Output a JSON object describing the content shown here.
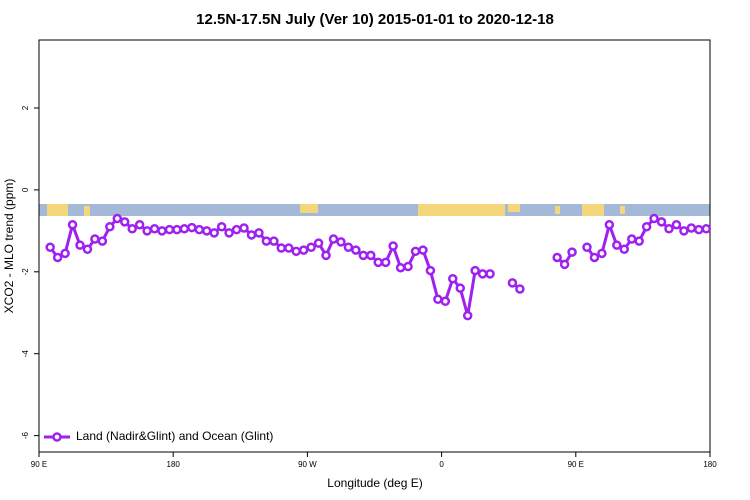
{
  "chart_data": {
    "type": "line",
    "title": "12.5N-17.5N July (Ver 10)   2015-01-01 to 2020-12-18",
    "x_label": "Longitude (deg E)",
    "y_label": "XCO2 - MLO trend (ppm)",
    "x": [
      97.5,
      102.5,
      107.5,
      112.5,
      117.5,
      122.5,
      127.5,
      132.5,
      137.5,
      142.5,
      147.5,
      152.5,
      157.5,
      162.5,
      167.5,
      172.5,
      177.5,
      182.5,
      187.5,
      192.5,
      197.5,
      202.5,
      207.5,
      212.5,
      217.5,
      222.5,
      227.5,
      232.5,
      237.5,
      242.5,
      247.5,
      252.5,
      257.5,
      262.5,
      267.5,
      272.5,
      277.5,
      282.5,
      287.5,
      292.5,
      297.5,
      302.5,
      307.5,
      312.5,
      317.5,
      322.5,
      327.5,
      332.5,
      337.5,
      342.5,
      347.5,
      352.5,
      357.5,
      362.5,
      367.5,
      372.5,
      377.5,
      382.5,
      387.5,
      392.5,
      397.5,
      402.5,
      407.5,
      412.5,
      417.5,
      422.5,
      427.5,
      432.5,
      437.5,
      442.5,
      447.5,
      452.5,
      457.5,
      462.5,
      467.5,
      472.5,
      477.5,
      482.5,
      487.5,
      492.5,
      497.5,
      502.5,
      507.5,
      512.5,
      517.5,
      522.5,
      527.5,
      532.5,
      537.5
    ],
    "series": [
      {
        "name": "Land (Nadir&Glint) and Ocean (Glint)",
        "color": "#a020f0",
        "values": [
          -1.4,
          -1.65,
          -1.55,
          -0.85,
          -1.35,
          -1.45,
          -1.2,
          -1.25,
          -0.9,
          -0.7,
          -0.78,
          -0.95,
          -0.85,
          -1.0,
          -0.95,
          -1.0,
          -0.97,
          -0.97,
          -0.95,
          -0.92,
          -0.97,
          -1.0,
          -1.05,
          -0.9,
          -1.05,
          -0.97,
          -0.93,
          -1.1,
          -1.05,
          -1.25,
          -1.25,
          -1.42,
          -1.42,
          -1.5,
          -1.47,
          -1.4,
          -1.3,
          -1.6,
          -1.2,
          -1.27,
          -1.4,
          -1.47,
          -1.6,
          -1.6,
          -1.77,
          -1.77,
          -1.37,
          -1.9,
          -1.87,
          -1.5,
          -1.47,
          -1.97,
          -2.67,
          -2.72,
          -2.17,
          -2.4,
          -3.07,
          -1.97,
          -2.05,
          -2.05,
          null,
          null,
          -2.27,
          -2.42,
          null,
          null,
          null,
          null,
          -1.65,
          -1.82,
          -1.52,
          null,
          -1.4,
          -1.65,
          -1.55,
          -0.85,
          -1.35,
          -1.45,
          -1.2,
          -1.25,
          -0.9,
          -0.7,
          -0.78,
          -0.95,
          -0.85,
          -1.0,
          -0.93,
          -0.97,
          -0.95
        ]
      }
    ],
    "xlim": [
      90,
      540
    ],
    "xticks": [
      {
        "value": 90,
        "label": "90 E"
      },
      180,
      {
        "value": 270,
        "label": "90 W"
      },
      {
        "value": 360,
        "label": "0"
      },
      {
        "value": 450,
        "label": "90 E"
      },
      {
        "value": 540,
        "label": "180"
      }
    ],
    "ylim": [
      -6.4,
      3.66
    ],
    "yticks": [
      -6,
      -4,
      -2,
      0,
      2
    ],
    "legend": "bottom-left"
  }
}
